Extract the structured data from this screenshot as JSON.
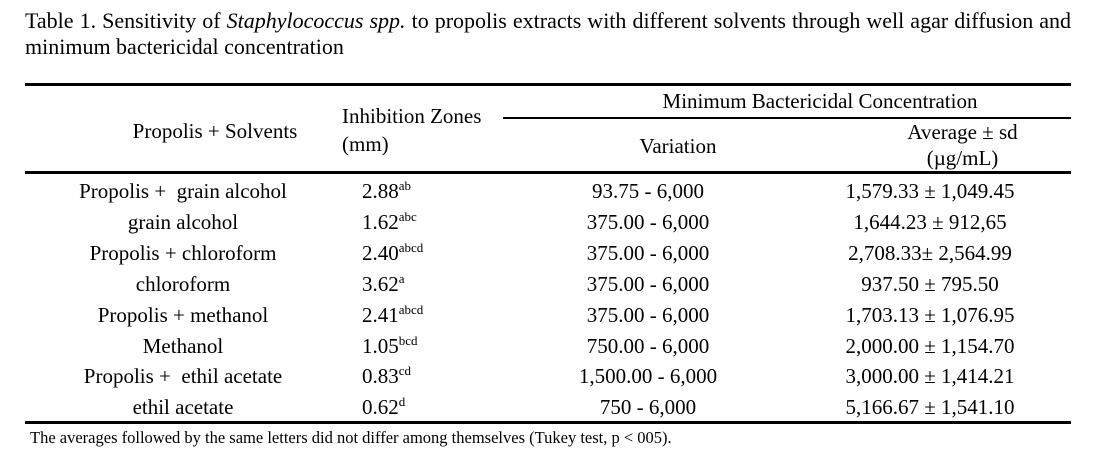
{
  "title": {
    "label": "Table 1.",
    "before": "Sensitivity of",
    "italic": "Staphylococcus spp.",
    "after": "to propolis extracts with different solvents through well agar diffusion and minimum bactericidal concentration"
  },
  "table": {
    "headers": {
      "treatment": "Propolis + Solvents",
      "zones_line1": "Inhibition Zones",
      "zones_line2": "(mm)",
      "mbc": "Minimum Bactericidal Concentration",
      "variation": "Variation",
      "average_line1": "Average ± sd",
      "average_line2": "(µg/mL)"
    },
    "rows": [
      {
        "treatment": "Propolis +  grain alcohol",
        "zone": "2.88",
        "zone_sup": "ab",
        "variation": "93.75 - 6,000",
        "average": "1,579.33 ± 1,049.45"
      },
      {
        "treatment": "grain alcohol",
        "zone": "1.62",
        "zone_sup": "abc",
        "variation": "375.00 - 6,000",
        "average": "1,644.23 ± 912,65"
      },
      {
        "treatment": "Propolis + chloroform",
        "zone": "2.40",
        "zone_sup": "abcd",
        "variation": "375.00 - 6,000",
        "average": "2,708.33± 2,564.99"
      },
      {
        "treatment": "chloroform",
        "zone": "3.62",
        "zone_sup": "a",
        "variation": "375.00 - 6,000",
        "average": "937.50 ± 795.50"
      },
      {
        "treatment": "Propolis + methanol",
        "zone": "2.41",
        "zone_sup": "abcd",
        "variation": "375.00 - 6,000",
        "average": "1,703.13 ± 1,076.95"
      },
      {
        "treatment": "Methanol",
        "zone": "1.05",
        "zone_sup": "bcd",
        "variation": "750.00 - 6,000",
        "average": "2,000.00 ± 1,154.70"
      },
      {
        "treatment": "Propolis +  ethil acetate",
        "zone": "0.83",
        "zone_sup": "cd",
        "variation": "1,500.00 - 6,000",
        "average": "3,000.00 ± 1,414.21"
      },
      {
        "treatment": "ethil acetate",
        "zone": "0.62",
        "zone_sup": "d",
        "variation": "750 - 6,000",
        "average": "5,166.67 ± 1,541.10"
      }
    ],
    "footnote": "The averages followed by the same letters did not differ among themselves (Tukey test, p < 005)."
  }
}
